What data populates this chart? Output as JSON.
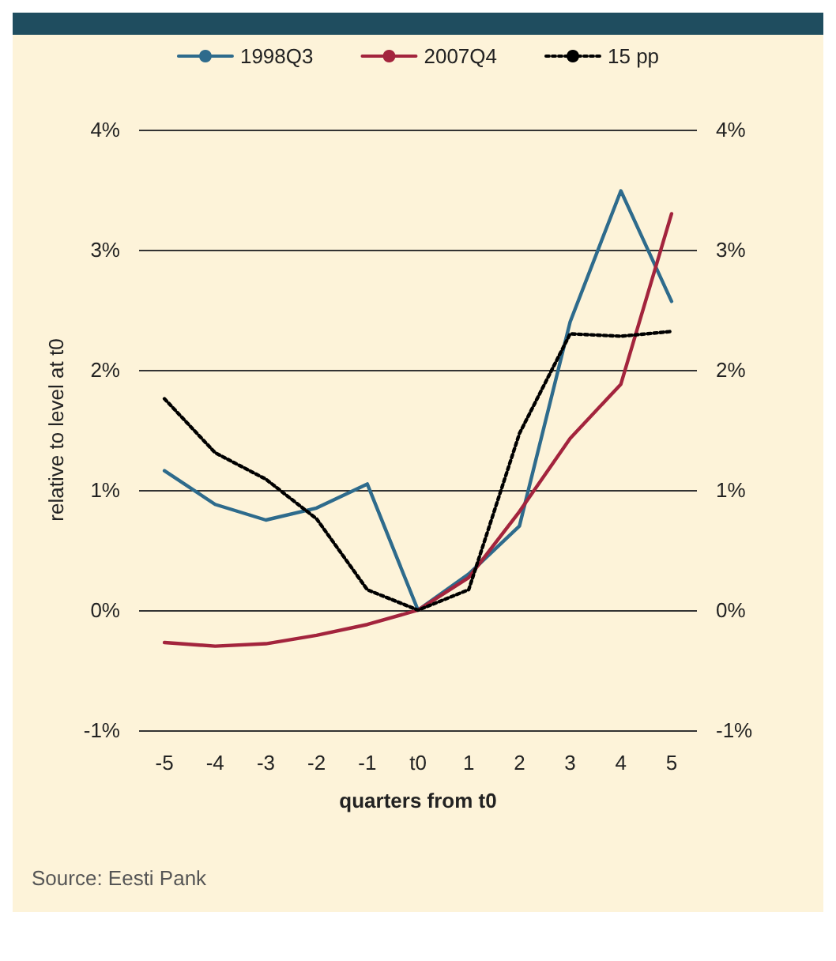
{
  "chart_data": {
    "type": "line",
    "categories": [
      "-5",
      "-4",
      "-3",
      "-2",
      "-1",
      "t0",
      "1",
      "2",
      "3",
      "4",
      "5"
    ],
    "series": [
      {
        "name": "1998Q3",
        "color": "#2e6b8c",
        "line_style": "solid",
        "values": [
          1.16,
          0.88,
          0.75,
          0.85,
          1.05,
          0,
          0.3,
          0.7,
          2.4,
          3.49,
          2.57
        ]
      },
      {
        "name": "2007Q4",
        "color": "#a3243d",
        "line_style": "solid",
        "values": [
          -0.27,
          -0.3,
          -0.28,
          -0.21,
          -0.12,
          0,
          0.27,
          0.82,
          1.43,
          1.88,
          3.3
        ]
      },
      {
        "name": "15 pp",
        "color": "#000000",
        "line_style": "dotted",
        "values": [
          1.76,
          1.31,
          1.09,
          0.76,
          0.17,
          0,
          0.17,
          1.47,
          2.3,
          2.28,
          2.32
        ]
      }
    ],
    "xlabel": "quarters from t0",
    "ylabel": "relative to level at t0",
    "ylim": [
      -1,
      4
    ],
    "yticks": [
      {
        "value": -1,
        "label": "-1%"
      },
      {
        "value": 0,
        "label": "0%"
      },
      {
        "value": 1,
        "label": "1%"
      },
      {
        "value": 2,
        "label": "2%"
      },
      {
        "value": 3,
        "label": "3%"
      },
      {
        "value": 4,
        "label": "4%"
      }
    ],
    "y2lim": [
      -1,
      4
    ],
    "y2ticks": [
      {
        "value": -1,
        "label": "-1%"
      },
      {
        "value": 0,
        "label": "0%"
      },
      {
        "value": 1,
        "label": "1%"
      },
      {
        "value": 2,
        "label": "2%"
      },
      {
        "value": 3,
        "label": "3%"
      },
      {
        "value": 4,
        "label": "4%"
      }
    ],
    "grid": "y",
    "legend": "top",
    "marker": "none",
    "annotations": [
      "Source: Eesti Pank"
    ]
  }
}
